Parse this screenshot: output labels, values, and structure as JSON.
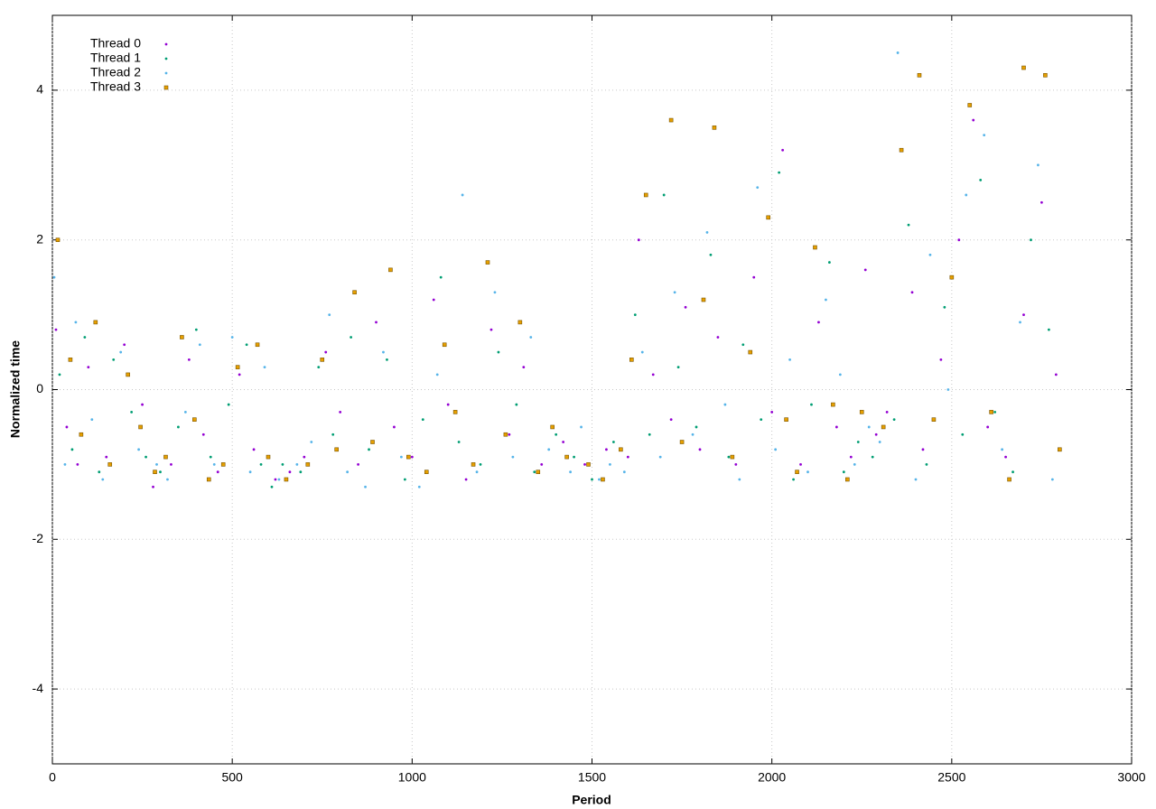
{
  "chart_data": {
    "type": "scatter",
    "x_label": "Period",
    "y_label": "Normalized time",
    "xlim": [
      0,
      3000
    ],
    "xticks": [
      0,
      500,
      1000,
      1500,
      2000,
      2500,
      3000
    ],
    "ylim": [
      -5,
      5
    ],
    "yticks": [
      -4,
      -2,
      0,
      2,
      4
    ],
    "grid": true,
    "legend": "top-left",
    "series": [
      {
        "name": "Thread 0",
        "color": "#9400d3",
        "marker": "dot",
        "x": [
          10,
          40,
          70,
          100,
          150,
          200,
          250,
          280,
          330,
          380,
          420,
          460,
          520,
          560,
          620,
          660,
          700,
          760,
          800,
          850,
          900,
          950,
          1000,
          1060,
          1100,
          1150,
          1220,
          1270,
          1310,
          1360,
          1420,
          1480,
          1540,
          1600,
          1630,
          1670,
          1720,
          1760,
          1800,
          1850,
          1900,
          1950,
          2000,
          2030,
          2080,
          2130,
          2180,
          2220,
          2260,
          2290,
          2320,
          2390,
          2420,
          2470,
          2520,
          2560,
          2600,
          2650,
          2700,
          2750,
          2790
        ],
        "values": [
          0.8,
          -0.5,
          -1.0,
          0.3,
          -0.9,
          0.6,
          -0.2,
          -1.3,
          -1.0,
          0.4,
          -0.6,
          -1.1,
          0.2,
          -0.8,
          -1.2,
          -1.1,
          -0.9,
          0.5,
          -0.3,
          -1.0,
          0.9,
          -0.5,
          -0.9,
          1.2,
          -0.2,
          -1.2,
          0.8,
          -0.6,
          0.3,
          -1.0,
          -0.7,
          -1.0,
          -0.8,
          -0.9,
          2.0,
          0.2,
          -0.4,
          1.1,
          -0.8,
          0.7,
          -1.0,
          1.5,
          -0.3,
          3.2,
          -1.0,
          0.9,
          -0.5,
          -0.9,
          1.6,
          -0.6,
          -0.3,
          1.3,
          -0.8,
          0.4,
          2.0,
          3.6,
          -0.5,
          -0.9,
          1.0,
          2.5,
          0.2
        ]
      },
      {
        "name": "Thread 1",
        "color": "#009e73",
        "marker": "dot",
        "x": [
          20,
          55,
          90,
          130,
          170,
          220,
          260,
          300,
          350,
          400,
          440,
          490,
          540,
          580,
          610,
          640,
          690,
          740,
          780,
          830,
          880,
          930,
          980,
          1030,
          1080,
          1130,
          1190,
          1240,
          1290,
          1340,
          1400,
          1450,
          1500,
          1560,
          1620,
          1660,
          1700,
          1740,
          1790,
          1830,
          1880,
          1920,
          1970,
          2020,
          2060,
          2110,
          2160,
          2200,
          2240,
          2280,
          2340,
          2380,
          2430,
          2480,
          2530,
          2580,
          2620,
          2670,
          2720,
          2770
        ],
        "values": [
          0.2,
          -0.8,
          0.7,
          -1.1,
          0.4,
          -0.3,
          -0.9,
          -1.1,
          -0.5,
          0.8,
          -0.9,
          -0.2,
          0.6,
          -1.0,
          -1.3,
          -1.0,
          -1.1,
          0.3,
          -0.6,
          0.7,
          -0.8,
          0.4,
          -1.2,
          -0.4,
          1.5,
          -0.7,
          -1.0,
          0.5,
          -0.2,
          -1.1,
          -0.6,
          -0.9,
          -1.2,
          -0.7,
          1.0,
          -0.6,
          2.6,
          0.3,
          -0.5,
          1.8,
          -0.9,
          0.6,
          -0.4,
          2.9,
          -1.2,
          -0.2,
          1.7,
          -1.1,
          -0.7,
          -0.9,
          -0.4,
          2.2,
          -1.0,
          1.1,
          -0.6,
          2.8,
          -0.3,
          -1.1,
          2.0,
          0.8
        ]
      },
      {
        "name": "Thread 2",
        "color": "#56b4e9",
        "marker": "dot",
        "x": [
          5,
          35,
          65,
          110,
          140,
          190,
          240,
          290,
          320,
          370,
          410,
          450,
          500,
          550,
          590,
          630,
          680,
          720,
          770,
          820,
          870,
          920,
          970,
          1020,
          1070,
          1140,
          1180,
          1230,
          1280,
          1330,
          1380,
          1440,
          1470,
          1520,
          1550,
          1590,
          1640,
          1690,
          1730,
          1780,
          1820,
          1870,
          1910,
          1960,
          2010,
          2050,
          2100,
          2150,
          2190,
          2230,
          2270,
          2300,
          2350,
          2400,
          2440,
          2490,
          2540,
          2590,
          2640,
          2690,
          2740,
          2780
        ],
        "values": [
          1.5,
          -1.0,
          0.9,
          -0.4,
          -1.2,
          0.5,
          -0.8,
          -1.0,
          -1.2,
          -0.3,
          0.6,
          -1.0,
          0.7,
          -1.1,
          0.3,
          -1.2,
          -1.0,
          -0.7,
          1.0,
          -1.1,
          -1.3,
          0.5,
          -0.9,
          -1.3,
          0.2,
          2.6,
          -1.1,
          1.3,
          -0.9,
          0.7,
          -0.8,
          -1.1,
          -0.5,
          -1.2,
          -1.0,
          -1.1,
          0.5,
          -0.9,
          1.3,
          -0.6,
          2.1,
          -0.2,
          -1.2,
          2.7,
          -0.8,
          0.4,
          -1.1,
          1.2,
          0.2,
          -1.0,
          -0.5,
          -0.7,
          4.5,
          -1.2,
          1.8,
          0.0,
          2.6,
          3.4,
          -0.8,
          0.9,
          3.0,
          -1.2
        ]
      },
      {
        "name": "Thread 3",
        "color": "#e69f00",
        "marker": "square",
        "x": [
          15,
          50,
          80,
          120,
          160,
          210,
          245,
          285,
          315,
          360,
          395,
          435,
          475,
          515,
          570,
          600,
          650,
          710,
          750,
          790,
          840,
          890,
          940,
          990,
          1040,
          1090,
          1120,
          1170,
          1210,
          1260,
          1300,
          1350,
          1390,
          1430,
          1490,
          1530,
          1580,
          1610,
          1650,
          1720,
          1750,
          1810,
          1840,
          1890,
          1940,
          1990,
          2040,
          2070,
          2120,
          2170,
          2210,
          2250,
          2310,
          2360,
          2410,
          2450,
          2500,
          2550,
          2610,
          2660,
          2700,
          2760,
          2800
        ],
        "values": [
          2.0,
          0.4,
          -0.6,
          0.9,
          -1.0,
          0.2,
          -0.5,
          -1.1,
          -0.9,
          0.7,
          -0.4,
          -1.2,
          -1.0,
          0.3,
          0.6,
          -0.9,
          -1.2,
          -1.0,
          0.4,
          -0.8,
          1.3,
          -0.7,
          1.6,
          -0.9,
          -1.1,
          0.6,
          -0.3,
          -1.0,
          1.7,
          -0.6,
          0.9,
          -1.1,
          -0.5,
          -0.9,
          -1.0,
          -1.2,
          -0.8,
          0.4,
          2.6,
          3.6,
          -0.7,
          1.2,
          3.5,
          -0.9,
          0.5,
          2.3,
          -0.4,
          -1.1,
          1.9,
          -0.2,
          -1.2,
          -0.3,
          -0.5,
          3.2,
          4.2,
          -0.4,
          1.5,
          3.8,
          -0.3,
          -1.2,
          4.3,
          4.2,
          -0.8
        ]
      }
    ]
  }
}
